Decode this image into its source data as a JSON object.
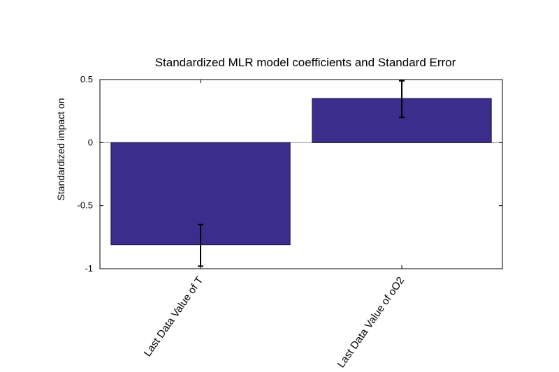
{
  "chart_data": {
    "type": "bar",
    "title": "Standardized MLR model coefficients and Standard Error",
    "xlabel": "",
    "ylabel": "Standardized impact on",
    "categories": [
      "Last Data Value of T",
      "Last Data Value of oO2"
    ],
    "values": [
      -0.81,
      0.35
    ],
    "error_bars": [
      {
        "low": -0.98,
        "high": -0.65
      },
      {
        "low": 0.2,
        "high": 0.49
      }
    ],
    "ylim": [
      -1,
      0.5
    ],
    "y_ticks": [
      0.5,
      0,
      -0.5,
      -1
    ],
    "y_tick_labels": [
      "0.5",
      "0",
      "-0.5",
      "-1"
    ],
    "grid": false,
    "legend": "none",
    "colors": {
      "bar": "#3a2d8c",
      "bar_edge": "#1a1440",
      "axis": "#000000",
      "error_bar": "#000000"
    }
  }
}
